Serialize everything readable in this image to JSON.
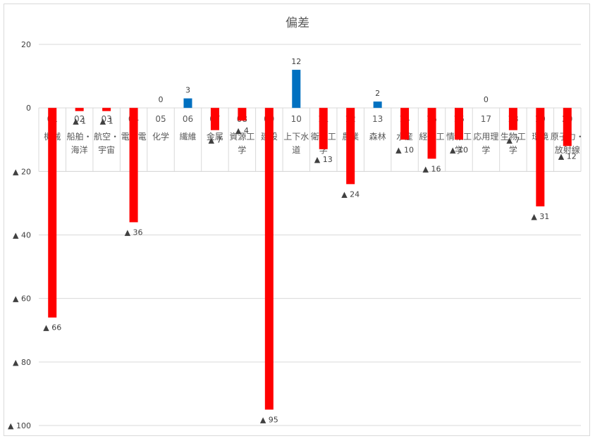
{
  "chart_data": {
    "type": "bar",
    "title": "偏差",
    "xlabel": "",
    "ylabel": "",
    "ylim": [
      -100,
      20
    ],
    "yticks": [
      {
        "value": 20,
        "label": "20"
      },
      {
        "value": 0,
        "label": "0"
      },
      {
        "value": -20,
        "label": "▲ 20"
      },
      {
        "value": -40,
        "label": "▲ 40"
      },
      {
        "value": -60,
        "label": "▲ 60"
      },
      {
        "value": -80,
        "label": "▲ 80"
      },
      {
        "value": -100,
        "label": "▲ 100"
      }
    ],
    "grid": true,
    "legend": "none",
    "colors": {
      "positive": "#0070c0",
      "negative": "#ff0000"
    },
    "categories": [
      {
        "code": "01",
        "name": "機械"
      },
      {
        "code": "02",
        "name": "船舶・海洋"
      },
      {
        "code": "03",
        "name": "航空・宇宙"
      },
      {
        "code": "04",
        "name": "電気電子"
      },
      {
        "code": "05",
        "name": "化学"
      },
      {
        "code": "06",
        "name": "繊維"
      },
      {
        "code": "07",
        "name": "金属"
      },
      {
        "code": "08",
        "name": "資源工学"
      },
      {
        "code": "09",
        "name": "建設"
      },
      {
        "code": "10",
        "name": "上下水道"
      },
      {
        "code": "11",
        "name": "衛生工学"
      },
      {
        "code": "12",
        "name": "農業"
      },
      {
        "code": "13",
        "name": "森林"
      },
      {
        "code": "14",
        "name": "水産"
      },
      {
        "code": "15",
        "name": "経営工学"
      },
      {
        "code": "16",
        "name": "情報工学"
      },
      {
        "code": "17",
        "name": "応用理学"
      },
      {
        "code": "18",
        "name": "生物工学"
      },
      {
        "code": "19",
        "name": "環境"
      },
      {
        "code": "20",
        "name": "原子力・放射線"
      }
    ],
    "values": [
      -66,
      -1,
      -1,
      -36,
      0,
      3,
      -7,
      -4,
      -95,
      12,
      -13,
      -24,
      2,
      -10,
      -16,
      -10,
      0,
      -7,
      -31,
      -12
    ],
    "data_labels": [
      "▲ 66",
      "▲ 1",
      "▲ 1",
      "▲ 36",
      "0",
      "3",
      "▲ 7",
      "▲ 4",
      "▲ 95",
      "12",
      "▲ 13",
      "▲ 24",
      "2",
      "▲ 10",
      "▲ 16",
      "▲ 10",
      "0",
      "▲ 7",
      "▲ 31",
      "▲ 12"
    ]
  }
}
